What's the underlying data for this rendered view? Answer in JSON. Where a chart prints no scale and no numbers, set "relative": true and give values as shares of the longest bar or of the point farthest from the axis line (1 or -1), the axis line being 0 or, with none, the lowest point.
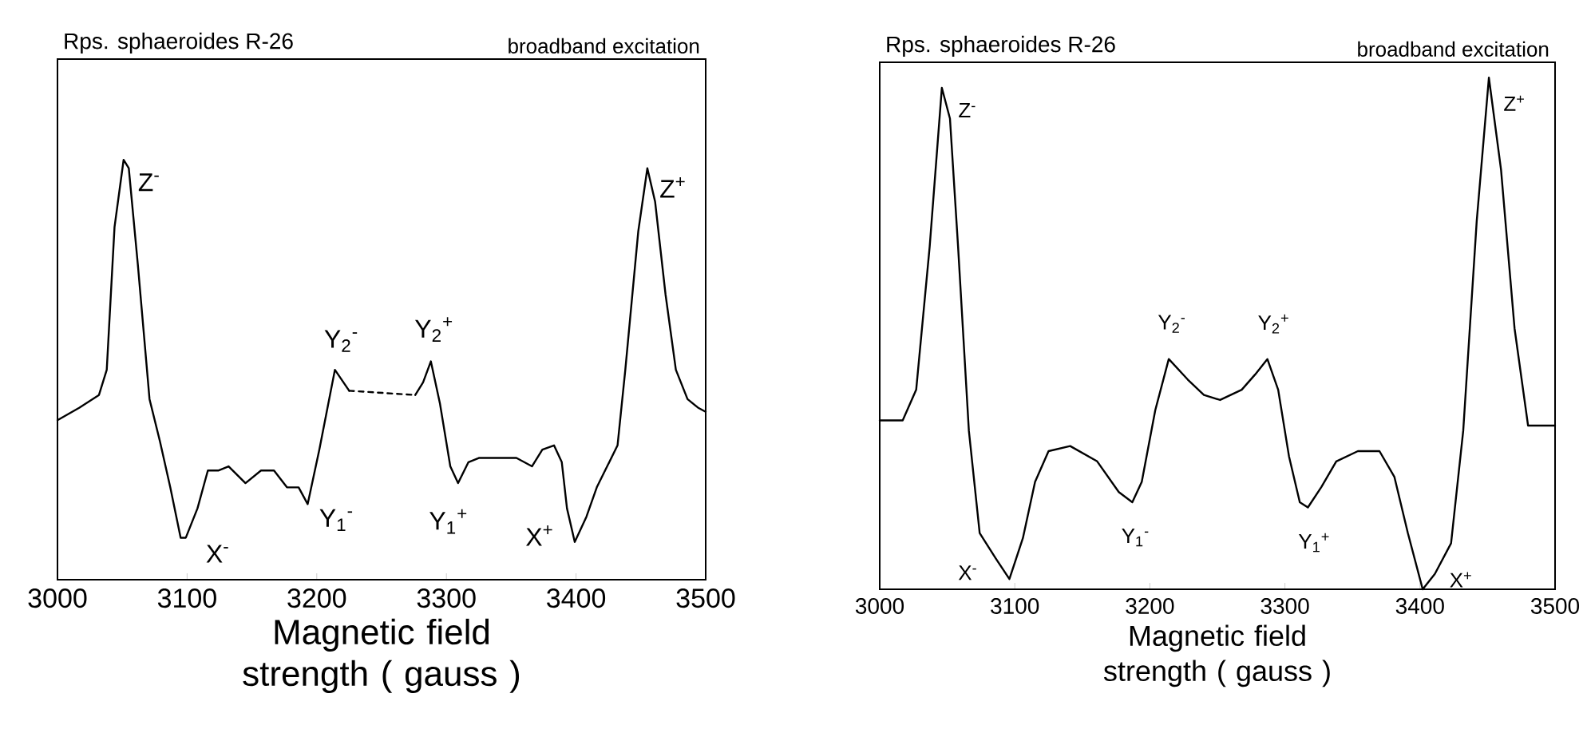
{
  "chart_data": [
    {
      "type": "line",
      "relative": true,
      "title": "Rps. sphaeroides R-26",
      "subtitle": "broadband excitation",
      "xlabel": "Magnetic field strength ( gauss )",
      "xlim": [
        3000,
        3500
      ],
      "xticks": [
        3000,
        3100,
        3200,
        3300,
        3400,
        3500
      ],
      "series": [
        {
          "color": "#000000",
          "x": [
            3000,
            3017,
            3032,
            3038,
            3044,
            3051,
            3055,
            3062,
            3071,
            3079,
            3087,
            3095,
            3099,
            3108,
            3116,
            3124,
            3132,
            3145,
            3157,
            3167,
            3177,
            3186,
            3193,
            3202,
            3214,
            3225
          ],
          "values": [
            0.38,
            0.41,
            0.44,
            0.5,
            0.84,
            1.0,
            0.98,
            0.75,
            0.43,
            0.33,
            0.22,
            0.1,
            0.1,
            0.17,
            0.26,
            0.26,
            0.27,
            0.23,
            0.26,
            0.26,
            0.22,
            0.22,
            0.18,
            0.31,
            0.5,
            0.45
          ]
        },
        {
          "color": "#000000",
          "line_style": "dashed",
          "x": [
            3225,
            3276
          ],
          "values": [
            0.45,
            0.44
          ]
        },
        {
          "color": "#000000",
          "x": [
            3276,
            3282,
            3288,
            3295,
            3303,
            3309,
            3317,
            3325,
            3337,
            3354,
            3366,
            3374,
            3383,
            3389,
            3393,
            3399,
            3408,
            3416,
            3424,
            3432,
            3438,
            3448,
            3455,
            3461,
            3469,
            3477,
            3486,
            3494,
            3500
          ],
          "values": [
            0.44,
            0.47,
            0.52,
            0.42,
            0.27,
            0.23,
            0.28,
            0.29,
            0.29,
            0.29,
            0.27,
            0.31,
            0.32,
            0.28,
            0.17,
            0.09,
            0.15,
            0.22,
            0.27,
            0.32,
            0.5,
            0.83,
            0.98,
            0.9,
            0.68,
            0.5,
            0.43,
            0.41,
            0.4
          ]
        }
      ],
      "annotations": [
        {
          "text": "Z$^{-}$",
          "x": 3051,
          "y": 1.0
        },
        {
          "text": "X$^{-}$",
          "x": 3099,
          "y": 0.1
        },
        {
          "text": "Y$_{1}$$^{-}$",
          "x": 3193,
          "y": 0.18
        },
        {
          "text": "Y$_{2}$$^{-}$",
          "x": 3214,
          "y": 0.5
        },
        {
          "text": "Y$_{2}$$^{+}$",
          "x": 3288,
          "y": 0.52
        },
        {
          "text": "Y$_{1}$$^{+}$",
          "x": 3309,
          "y": 0.23
        },
        {
          "text": "X$^{+}$",
          "x": 3399,
          "y": 0.09
        },
        {
          "text": "Z$^{+}$",
          "x": 3455,
          "y": 0.98
        }
      ]
    },
    {
      "type": "line",
      "relative": true,
      "title": "Rps. sphaeroides R-26",
      "subtitle": "broadband excitation",
      "xlabel": "Magnetic field strength ( gauss )",
      "xlim": [
        3000,
        3500
      ],
      "xticks": [
        3000,
        3100,
        3200,
        3300,
        3400,
        3500
      ],
      "series": [
        {
          "color": "#000000",
          "x": [
            3000,
            3017,
            3027,
            3037,
            3046,
            3052,
            3058,
            3066,
            3074,
            3086,
            3096,
            3106,
            3115,
            3125,
            3141,
            3161,
            3177,
            3187,
            3194,
            3204,
            3214,
            3228,
            3240,
            3252,
            3268,
            3278,
            3287,
            3295,
            3303,
            3311,
            3317,
            3327,
            3338,
            3354,
            3370,
            3381,
            3391,
            3402,
            3411,
            3423,
            3432,
            3442,
            3451,
            3460,
            3470,
            3480,
            3500
          ],
          "values": [
            0.33,
            0.33,
            0.39,
            0.67,
            0.98,
            0.92,
            0.67,
            0.31,
            0.11,
            0.06,
            0.02,
            0.1,
            0.21,
            0.27,
            0.28,
            0.25,
            0.19,
            0.17,
            0.21,
            0.35,
            0.45,
            0.41,
            0.38,
            0.37,
            0.39,
            0.42,
            0.45,
            0.39,
            0.26,
            0.17,
            0.16,
            0.2,
            0.25,
            0.27,
            0.27,
            0.22,
            0.11,
            0.0,
            0.03,
            0.09,
            0.31,
            0.72,
            1.0,
            0.82,
            0.51,
            0.32,
            0.32
          ]
        }
      ],
      "annotations": [
        {
          "text": "Z$^{-}$",
          "x": 3046,
          "y": 0.98
        },
        {
          "text": "X$^{-}$",
          "x": 3096,
          "y": 0.02
        },
        {
          "text": "Y$_{1}$$^{-}$",
          "x": 3187,
          "y": 0.17
        },
        {
          "text": "Y$_{2}$$^{-}$",
          "x": 3214,
          "y": 0.45
        },
        {
          "text": "Y$_{2}$$^{+}$",
          "x": 3287,
          "y": 0.45
        },
        {
          "text": "Y$_{1}$$^{+}$",
          "x": 3317,
          "y": 0.16
        },
        {
          "text": "X$^{+}$",
          "x": 3402,
          "y": 0.0
        },
        {
          "text": "Z$^{+}$",
          "x": 3451,
          "y": 1.0
        }
      ]
    }
  ]
}
